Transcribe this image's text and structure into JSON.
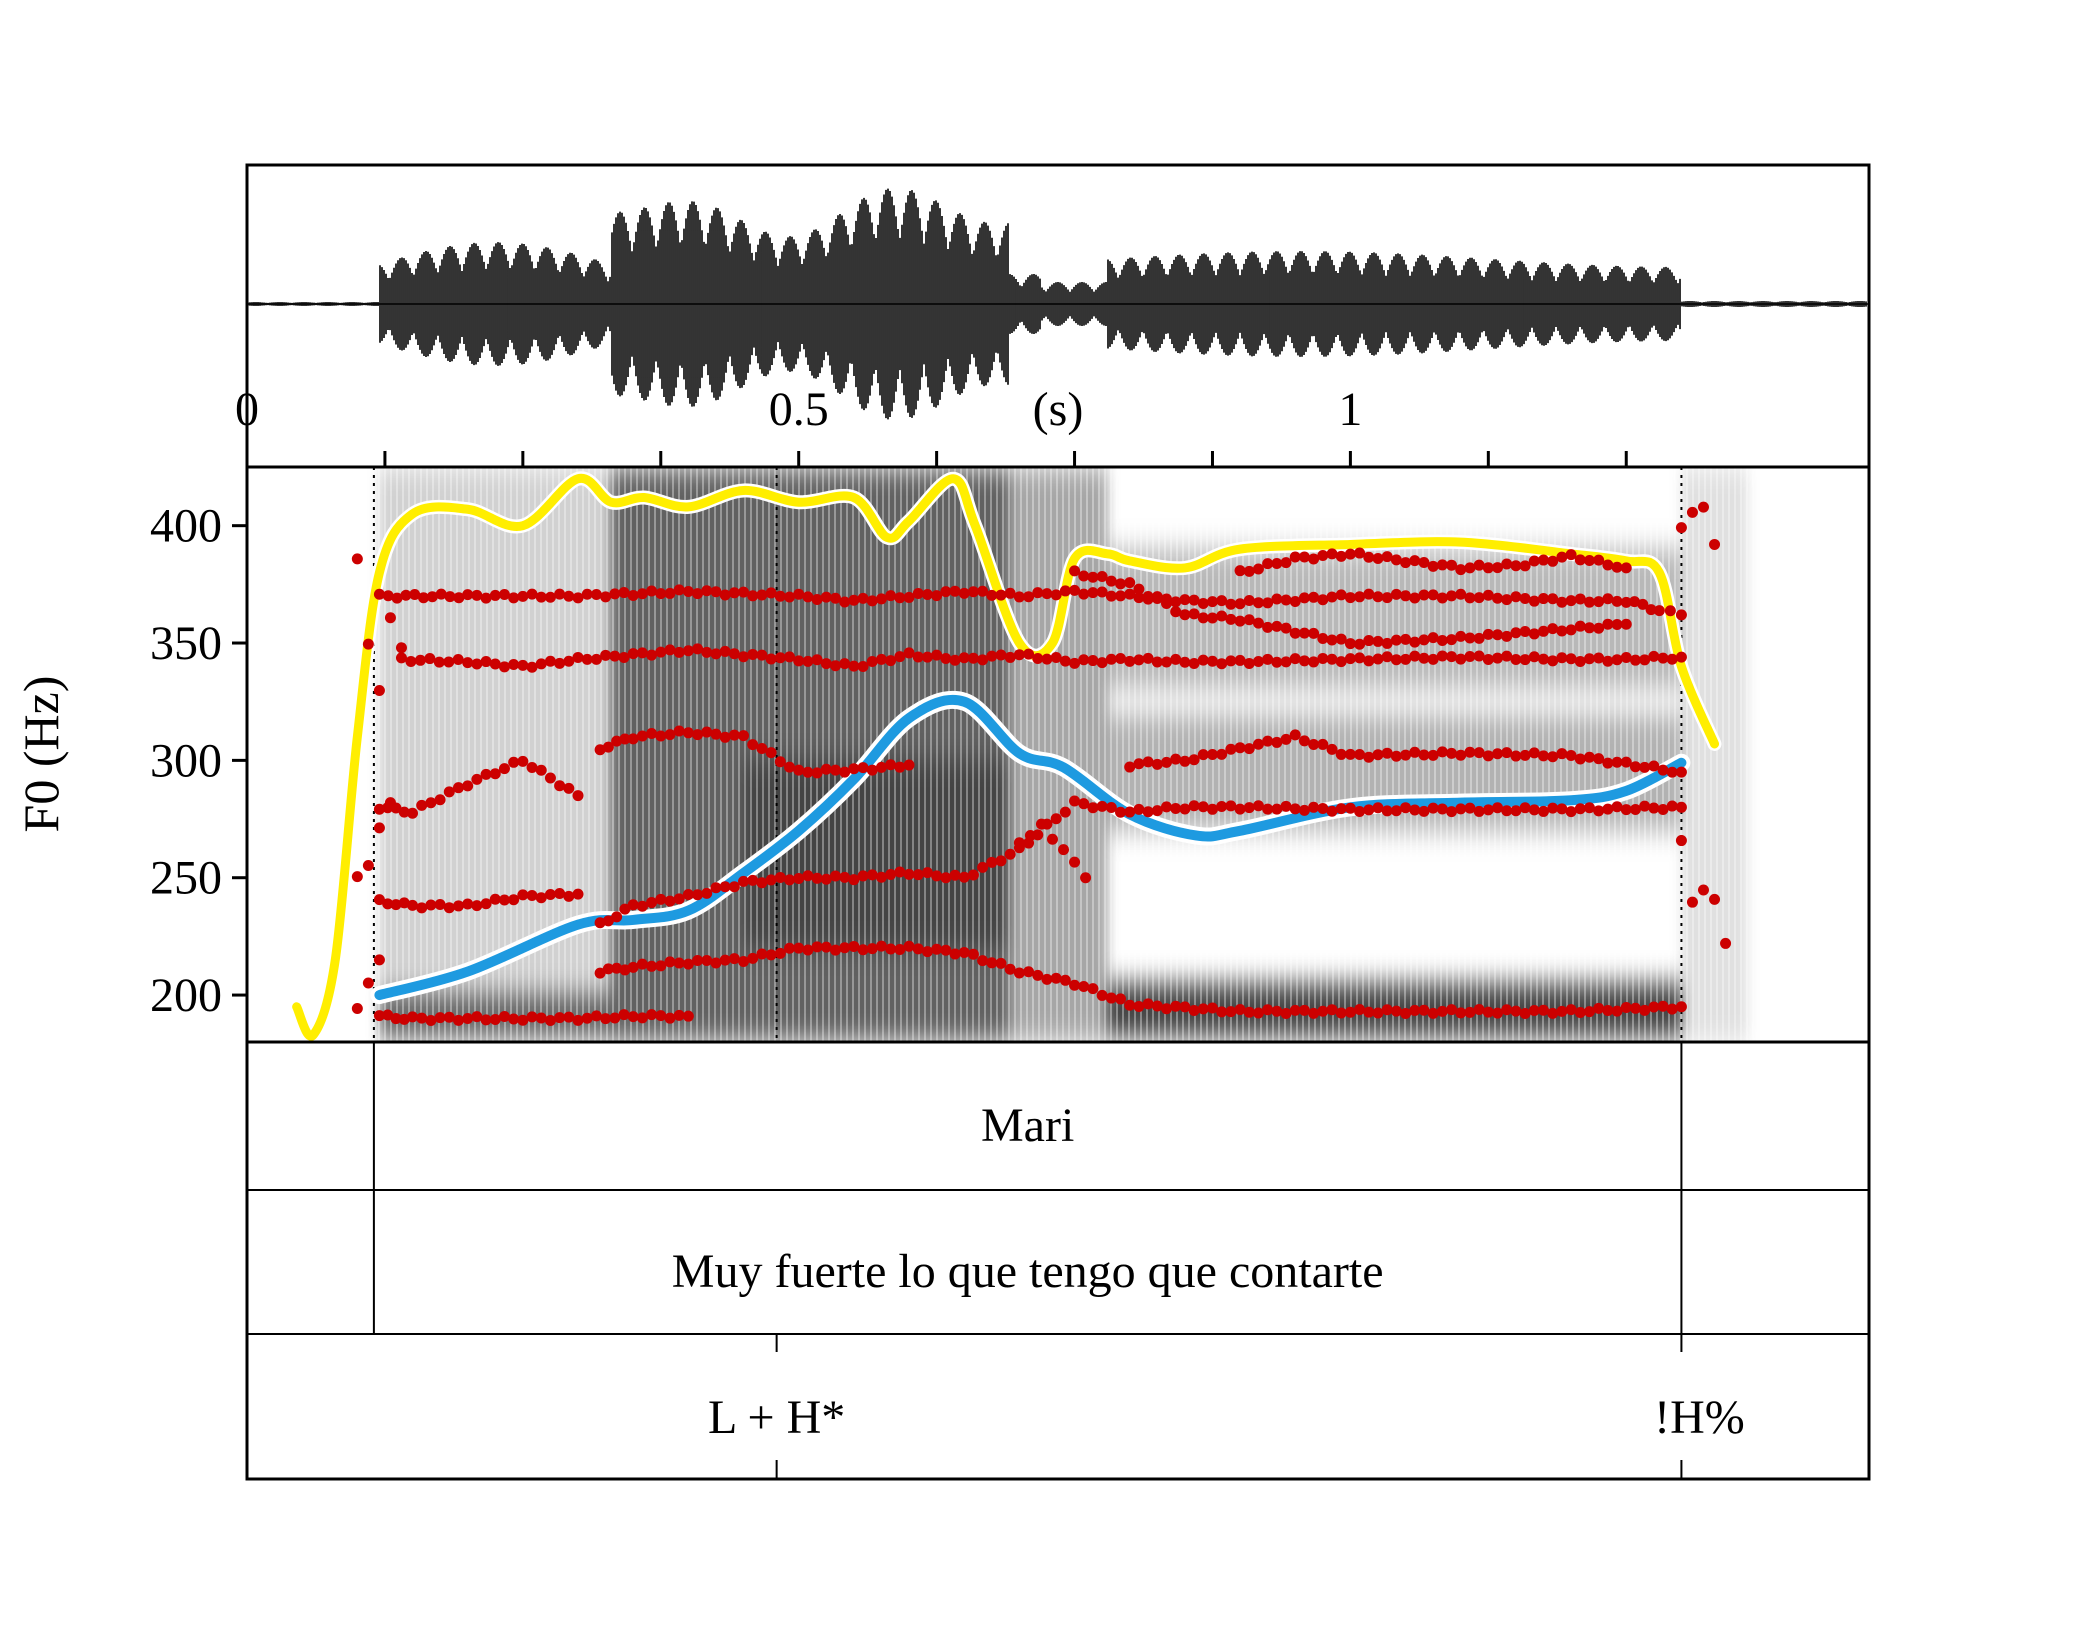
{
  "chart_data": {
    "type": "line",
    "title": "",
    "xlabel": "",
    "ylabel": "F0 (Hz)",
    "time_unit_label": "(s)",
    "time_tick_labels": [
      "0",
      "0.5",
      "1"
    ],
    "xlim": [
      0,
      1.47
    ],
    "ylim": [
      180,
      425
    ],
    "y_ticks": [
      200,
      250,
      300,
      350,
      400
    ],
    "x_minor_ticks": [
      0.125,
      0.25,
      0.375,
      0.5,
      0.625,
      0.75,
      0.875,
      1.0,
      1.125,
      1.25
    ],
    "grid": false,
    "legend": "none",
    "colors": {
      "pitch_candidates": "#cc0000",
      "smoothed_f0": "#1e9ae0",
      "intensity": "#ffee00",
      "waveform": "#000000"
    },
    "series": [
      {
        "role": "smoothed_f0",
        "x": [
          0.12,
          0.2,
          0.3,
          0.35,
          0.4,
          0.45,
          0.5,
          0.55,
          0.6,
          0.65,
          0.7,
          0.74,
          0.8,
          0.86,
          0.9,
          1.0,
          1.1,
          1.2,
          1.25,
          1.3
        ],
        "y": [
          200,
          210,
          230,
          232,
          236,
          252,
          270,
          292,
          318,
          325,
          303,
          297,
          277,
          268,
          270,
          280,
          282,
          283,
          287,
          299
        ]
      },
      {
        "role": "intensity",
        "x": [
          0.045,
          0.06,
          0.08,
          0.1,
          0.12,
          0.15,
          0.2,
          0.25,
          0.3,
          0.33,
          0.36,
          0.4,
          0.45,
          0.5,
          0.55,
          0.58,
          0.6,
          0.64,
          0.66,
          0.7,
          0.73,
          0.75,
          0.78,
          0.8,
          0.85,
          0.9,
          1.0,
          1.1,
          1.2,
          1.25,
          1.28,
          1.3,
          1.33
        ],
        "y": [
          195,
          183,
          215,
          310,
          380,
          405,
          407,
          400,
          420,
          410,
          412,
          408,
          415,
          410,
          412,
          395,
          402,
          420,
          400,
          350,
          350,
          386,
          388,
          385,
          382,
          390,
          392,
          393,
          388,
          385,
          380,
          340,
          307
        ]
      },
      {
        "role": "pitch_candidates",
        "tracks": [
          {
            "x": [
              0.12,
              0.2,
              0.3,
              0.4,
              0.5,
              0.55,
              0.6,
              0.65,
              0.7,
              0.75,
              0.8,
              0.85,
              0.9,
              1.0,
              1.1,
              1.2,
              1.25,
              1.28,
              1.3
            ],
            "y": [
              370,
              370,
              370,
              372,
              370,
              368,
              370,
              372,
              370,
              372,
              370,
              368,
              367,
              370,
              370,
              368,
              368,
              364,
              362
            ]
          },
          {
            "x": [
              0.14,
              0.2,
              0.25,
              0.3,
              0.35,
              0.4,
              0.45,
              0.5,
              0.55,
              0.6,
              0.65,
              0.7,
              0.75,
              0.8,
              0.85,
              0.9,
              1.0,
              1.1,
              1.2,
              1.25,
              1.3
            ],
            "y": [
              343,
              342,
              340,
              343,
              345,
              347,
              345,
              343,
              340,
              345,
              343,
              345,
              342,
              343,
              342,
              342,
              343,
              344,
              343,
              343,
              344
            ]
          },
          {
            "x": [
              0.12,
              0.15,
              0.2,
              0.25,
              0.3,
              0.35,
              0.4
            ],
            "y": [
              191,
              190,
              190,
              190,
              190,
              191,
              191
            ]
          },
          {
            "x": [
              0.32,
              0.35,
              0.4,
              0.45,
              0.5,
              0.55,
              0.6,
              0.65,
              0.7,
              0.75,
              0.8,
              0.9,
              1.0,
              1.1,
              1.2,
              1.3
            ],
            "y": [
              210,
              212,
              214,
              215,
              220,
              220,
              220,
              218,
              210,
              205,
              196,
              193,
              193,
              193,
              193,
              195
            ]
          },
          {
            "x": [
              0.32,
              0.35,
              0.4,
              0.45,
              0.5,
              0.55,
              0.6,
              0.65,
              0.7,
              0.75,
              0.8,
              0.85,
              0.9,
              1.0,
              1.1,
              1.2,
              1.3
            ],
            "y": [
              230,
              238,
              242,
              248,
              250,
              250,
              252,
              250,
              262,
              282,
              278,
              280,
              280,
              279,
              279,
              279,
              280
            ]
          },
          {
            "x": [
              0.12,
              0.15,
              0.2,
              0.25,
              0.3
            ],
            "y": [
              240,
              238,
              238,
              242,
              243
            ]
          },
          {
            "x": [
              0.12,
              0.15,
              0.2,
              0.25,
              0.3
            ],
            "y": [
              280,
              278,
              290,
              300,
              285
            ]
          },
          {
            "x": [
              0.32,
              0.35,
              0.4,
              0.45,
              0.5,
              0.55,
              0.6
            ],
            "y": [
              305,
              310,
              312,
              310,
              295,
              296,
              298
            ]
          },
          {
            "x": [
              0.8,
              0.85,
              0.9,
              0.95,
              1.0,
              1.1,
              1.2,
              1.3
            ],
            "y": [
              298,
              300,
              305,
              310,
              302,
              303,
              302,
              295
            ]
          },
          {
            "x": [
              0.75,
              0.8,
              0.85,
              0.9,
              0.95,
              1.0,
              1.1,
              1.2,
              1.25
            ],
            "y": [
              380,
              375,
              362,
              360,
              355,
              350,
              352,
              356,
              358
            ]
          },
          {
            "x": [
              0.9,
              0.95,
              1.0,
              1.05,
              1.1,
              1.15,
              1.2,
              1.25
            ],
            "y": [
              380,
              386,
              388,
              385,
              382,
              383,
              387,
              382
            ]
          },
          {
            "x": [
              0.1,
              0.11,
              0.12,
              0.13,
              0.14
            ],
            "y": [
              385,
              350,
              330,
              360,
              348
            ]
          },
          {
            "x": [
              0.1,
              0.11,
              0.12
            ],
            "y": [
              195,
              205,
              215
            ]
          },
          {
            "x": [
              0.1,
              0.11,
              0.12,
              0.13
            ],
            "y": [
              250,
              255,
              272,
              282
            ]
          },
          {
            "x": [
              1.3,
              1.31,
              1.32,
              1.33
            ],
            "y": [
              400,
              405,
              408,
              392
            ]
          },
          {
            "x": [
              1.3,
              1.31,
              1.32,
              1.33,
              1.34
            ],
            "y": [
              265,
              240,
              245,
              240,
              222
            ]
          },
          {
            "x": [
              0.7,
              0.72,
              0.74,
              0.76
            ],
            "y": [
              265,
              272,
              262,
              250
            ]
          }
        ]
      }
    ],
    "tiers": [
      {
        "name": "tier-1",
        "intervals": [
          {
            "xmin": 0.115,
            "xmax": 1.3,
            "label": "Mari"
          }
        ]
      },
      {
        "name": "tier-2",
        "intervals": [
          {
            "xmin": 0.115,
            "xmax": 1.3,
            "label": "Muy fuerte lo que tengo que contarte"
          }
        ]
      },
      {
        "name": "tier-3",
        "points": [
          {
            "x": 0.48,
            "label": "L + H*"
          },
          {
            "x": 1.3,
            "label": "!H%"
          }
        ]
      }
    ]
  }
}
